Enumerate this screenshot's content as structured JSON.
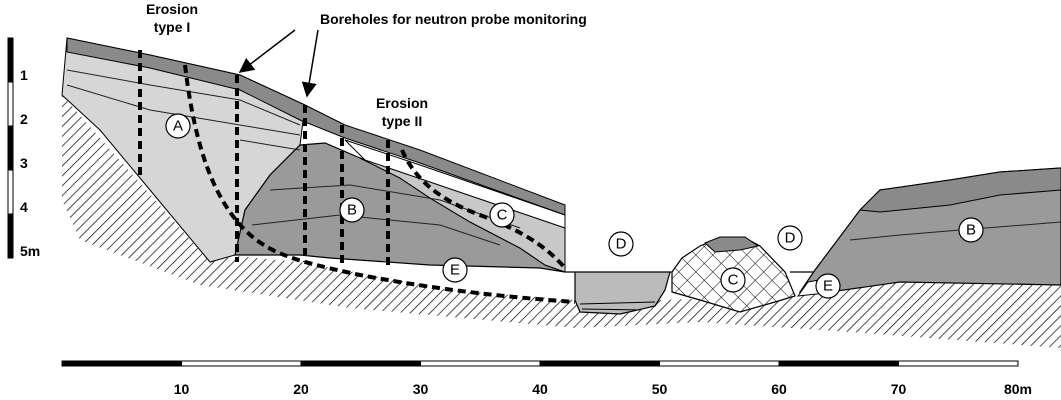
{
  "annotations": {
    "erosion_type_1": [
      "Erosion",
      "type I"
    ],
    "boreholes": "Boreholes for neutron probe monitoring",
    "erosion_type_2": [
      "Erosion",
      "type II"
    ]
  },
  "zones": [
    {
      "label": "A"
    },
    {
      "label": "B"
    },
    {
      "label": "C"
    },
    {
      "label": "D"
    },
    {
      "label": "E"
    },
    {
      "label": "C"
    },
    {
      "label": "D"
    },
    {
      "label": "E"
    },
    {
      "label": "B"
    }
  ],
  "vertical_scale": [
    "1",
    "2",
    "3",
    "4",
    "5m"
  ],
  "horizontal_scale": [
    "10",
    "20",
    "30",
    "40",
    "50",
    "60",
    "70",
    "80m"
  ]
}
